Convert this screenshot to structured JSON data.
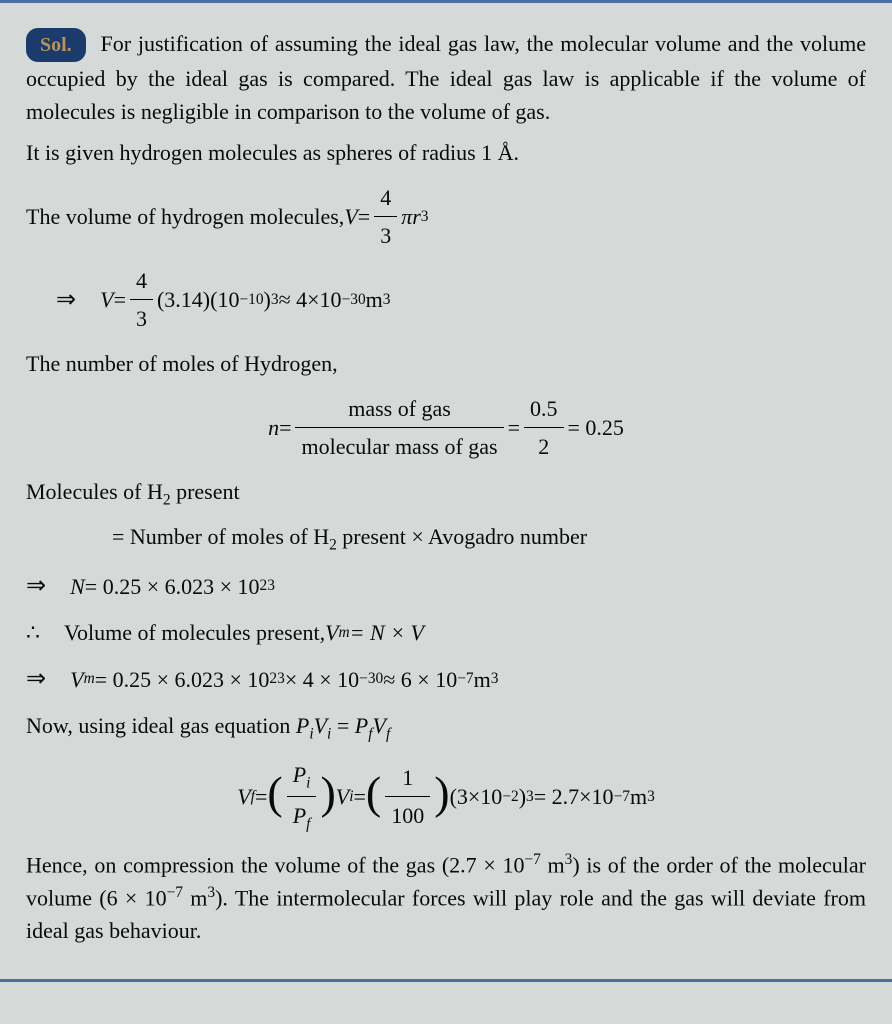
{
  "badge": "Sol.",
  "p1": "For justification of assuming the ideal gas law, the molecular volume and the volume occupied by the ideal gas is compared. The ideal gas law is applicable if the volume of molecules is negligible in comparison to the volume of gas.",
  "p2": "It is given hydrogen molecules as spheres of radius 1 Å.",
  "line_vol_intro": "The volume of hydrogen molecules, ",
  "V": "V",
  "eq": " = ",
  "frac_4_3_num": "4",
  "frac_4_3_den": "3",
  "pi_r3": "πr",
  "sup3": "3",
  "V_calc": "(3.14)(10",
  "neg10": "−10",
  "close_cube": ")",
  "approx": " ≈ 4×10",
  "neg30": "−30",
  "m3": "m",
  "moles_intro": "The number of moles of Hydrogen,",
  "n": "n",
  "mass_num": "mass of gas",
  "mass_den": "molecular mass of gas",
  "frac_05_num": "0.5",
  "frac_05_den": "2",
  "n_result": " = 0.25",
  "molecules_present": "Molecules of H",
  "sub2": "2",
  "present": " present",
  "eq_moles": "= Number of moles of H",
  "present_times": " present × Avogadro number",
  "N": "N",
  "N_calc": " = 0.25 × 6.023 × 10",
  "sup23": "23",
  "vol_molecules": "Volume of molecules present, ",
  "Vm": "V",
  "sub_m": "m",
  "eqNV": " = N × V",
  "Vm_calc": " = 0.25 × 6.023 × 10",
  "times4": " × 4 × 10",
  "approx6": " ≈ 6 × 10",
  "neg7": "−7",
  "m3_sp": " m",
  "ideal_intro": "Now, using ideal gas equation ",
  "Pi": "P",
  "sub_i": "i",
  "Vi": "V",
  "Pf": "P",
  "sub_f": "f",
  "Vf": "V",
  "one": "1",
  "hundred": "100",
  "vf_mid": "(3×10",
  "neg2": "−2",
  "vf_result": " = 2.7×10",
  "conclusion1": "Hence, on compression the volume of the gas (2.7 × 10",
  "conclusion2": ") is of the order of the molecular volume (6 × 10",
  "conclusion3": "). The intermolecular forces will play role and the gas will deviate from ideal gas behaviour."
}
